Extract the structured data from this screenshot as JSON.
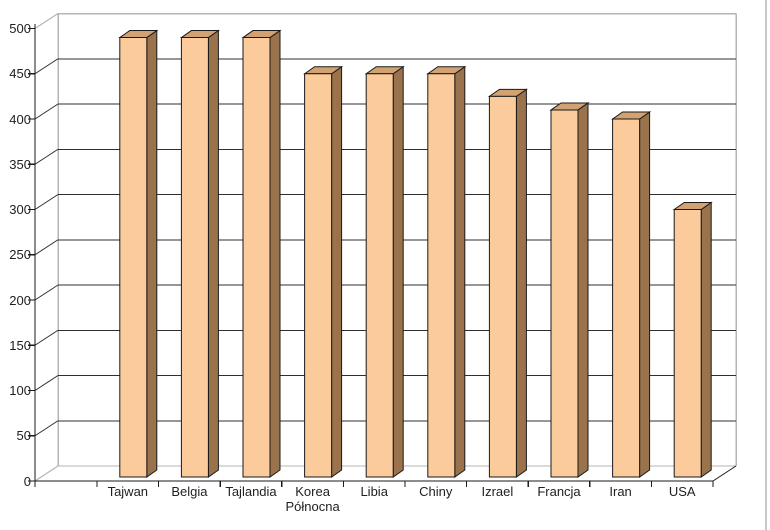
{
  "page": {
    "background": "#ffffff",
    "title": ""
  },
  "chart_data": {
    "type": "bar",
    "variant": "3d-column",
    "title": "",
    "xlabel": "",
    "ylabel": "",
    "categories": [
      "Tajwan",
      "Belgia",
      "Tajlandia",
      "Korea Północna",
      "Libia",
      "Chiny",
      "Izrael",
      "Francja",
      "Iran",
      "USA"
    ],
    "values": [
      490,
      490,
      490,
      450,
      450,
      450,
      425,
      410,
      400,
      300
    ],
    "ylim": [
      0,
      500
    ],
    "ytick_step": 50,
    "ytick_labels": [
      "0",
      "50",
      "100",
      "150",
      "200",
      "250",
      "300",
      "350",
      "400",
      "450",
      "500"
    ],
    "grid": true,
    "legend": false,
    "colors": {
      "bar_front": "#FBCB9B",
      "bar_top": "#D2A272",
      "bar_side": "#9A734C",
      "bar_outline": "#1a1a1a",
      "gridline": "#2f2f2f",
      "wall_edge": "#b4b4b4",
      "axis": "#1a1a1a",
      "label_text": "#1f1f1f",
      "frame_border": "#c8c8c8"
    }
  }
}
